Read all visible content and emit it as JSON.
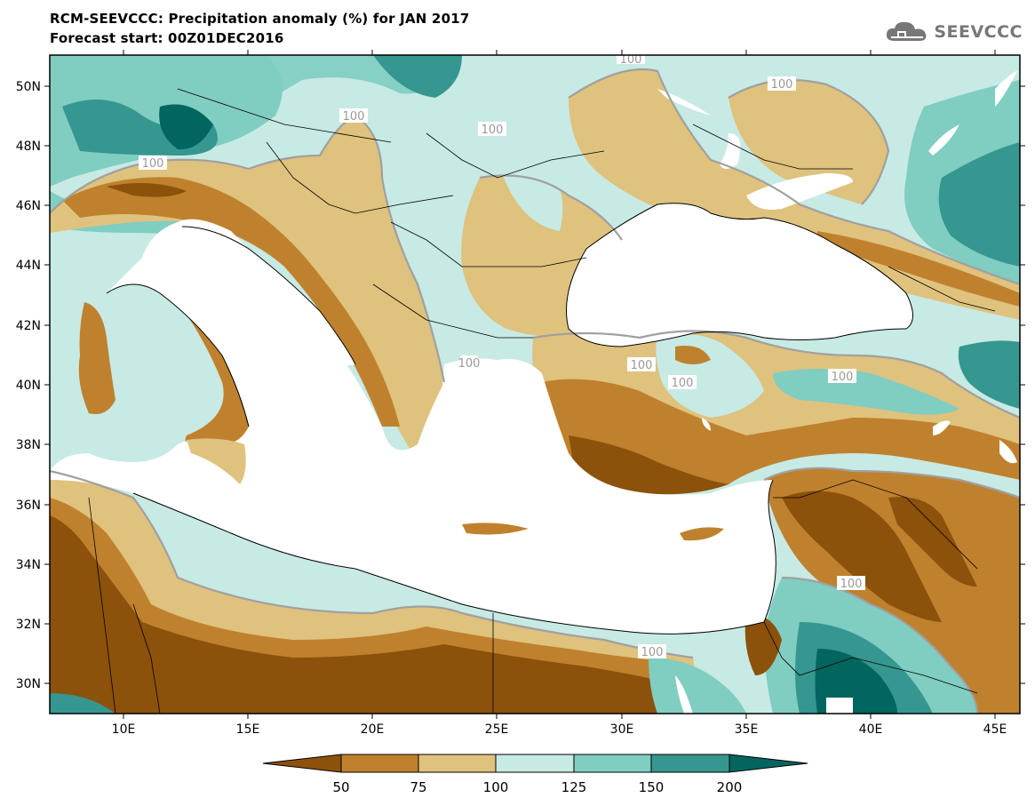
{
  "header": {
    "title_line1": "RCM-SEEVCCC: Precipitation anomaly (%) for JAN 2017",
    "title_line2": "Forecast start: 00Z01DEC2016",
    "logo_text": "SEEVCCC"
  },
  "map": {
    "lat_labels": [
      "50N",
      "48N",
      "46N",
      "44N",
      "42N",
      "40N",
      "38N",
      "36N",
      "34N",
      "32N",
      "30N"
    ],
    "lon_labels": [
      "10E",
      "15E",
      "20E",
      "25E",
      "30E",
      "35E",
      "40E",
      "45E"
    ],
    "contour_labels": [
      "100",
      "100",
      "100",
      "100",
      "100",
      "100",
      "100",
      "100",
      "100",
      "100",
      "100"
    ]
  },
  "colorbar": {
    "labels": [
      "50",
      "75",
      "100",
      "125",
      "150",
      "200"
    ],
    "colors": [
      "#8c510a",
      "#bf812d",
      "#dfc27d",
      "#c7eae5",
      "#80cdc1",
      "#35978f",
      "#01665e"
    ]
  },
  "palette": {
    "water": "#ffffff",
    "contour": "#a0a0a0",
    "border": "#000000"
  }
}
